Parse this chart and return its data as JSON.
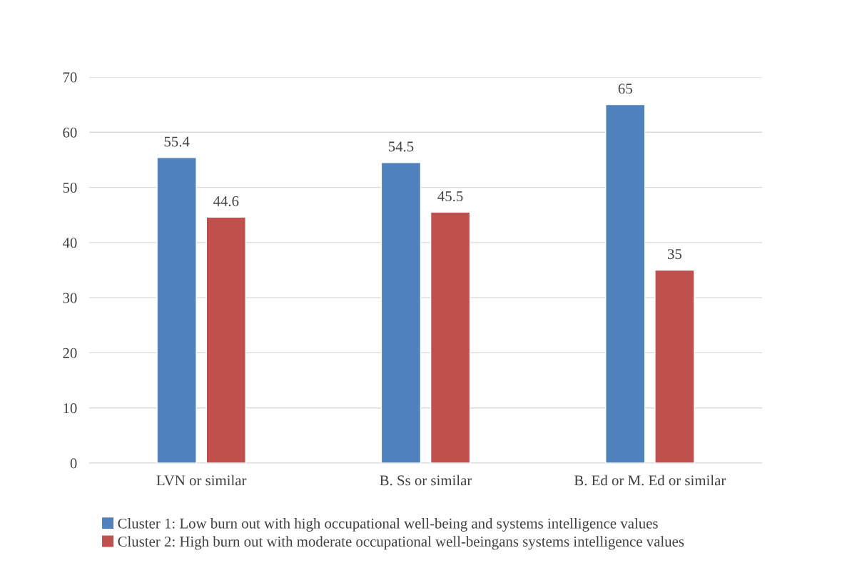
{
  "chart_data": {
    "type": "bar",
    "categories": [
      "LVN or similar",
      "B. Ss or similar",
      "B. Ed or M. Ed or similar"
    ],
    "series": [
      {
        "name": "Cluster 1: Low burn out with high occupational well-being and systems intelligence values",
        "color": "#4f81bd",
        "values": [
          55.4,
          54.5,
          65
        ]
      },
      {
        "name": "Cluster 2: High burn out with moderate occupational well-beingans systems intelligence values",
        "color": "#c0504d",
        "values": [
          44.6,
          45.5,
          35
        ]
      }
    ],
    "ylim": [
      0,
      70
    ],
    "yticks": [
      0,
      10,
      20,
      30,
      40,
      50,
      60,
      70
    ],
    "grid": "y",
    "legend": "bottom",
    "data_labels": true
  }
}
